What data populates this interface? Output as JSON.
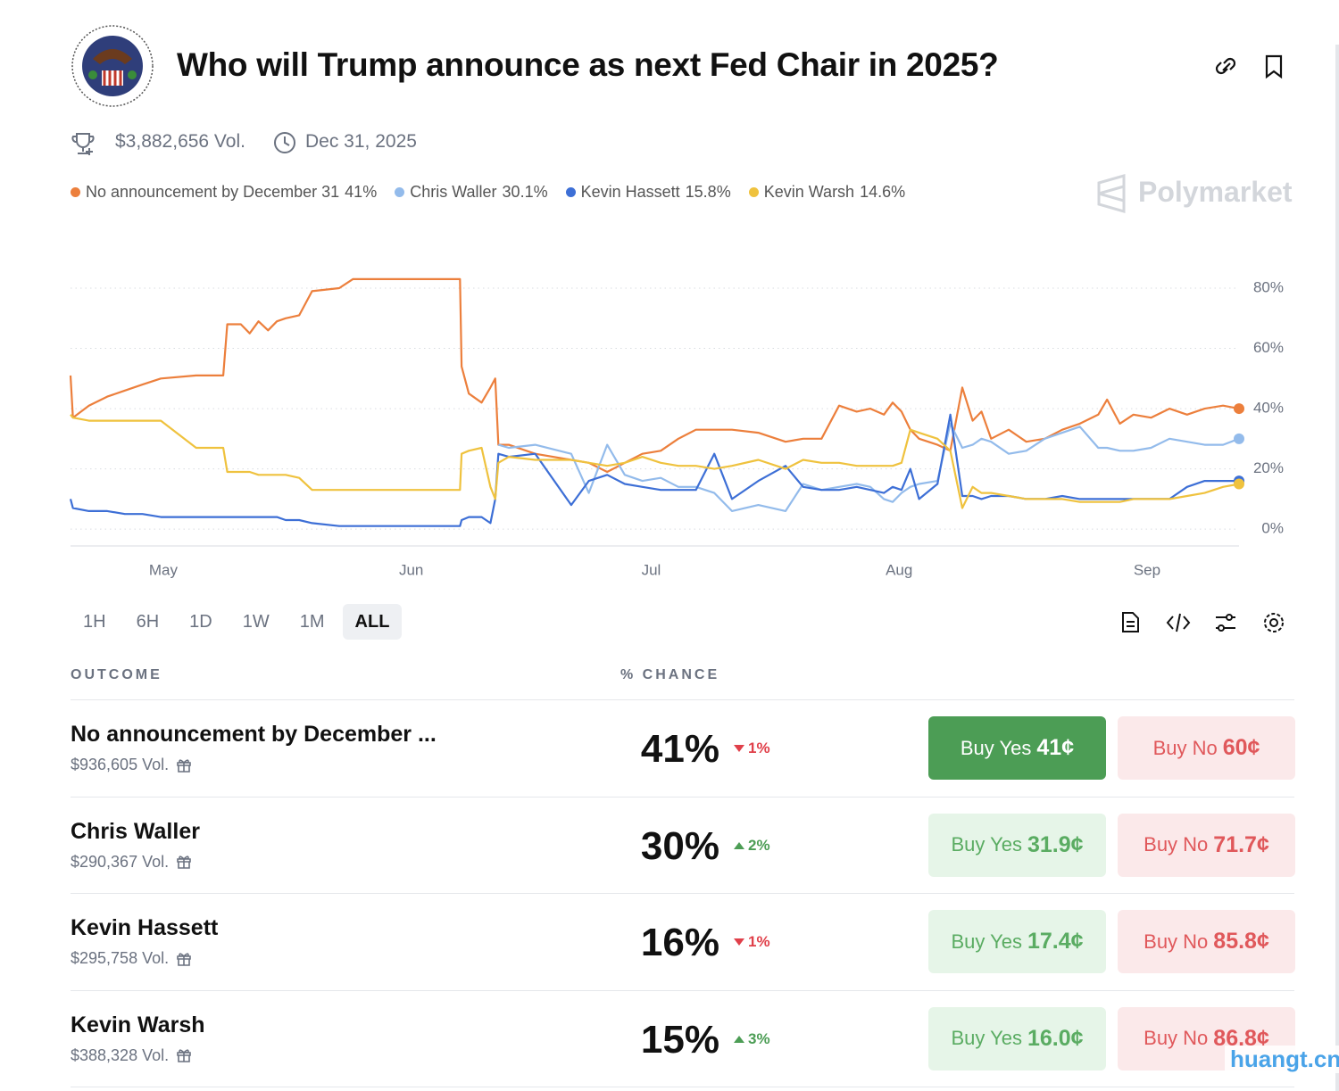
{
  "header": {
    "title": "Who will Trump announce as next Fed Chair in 2025?",
    "volume": "$3,882,656 Vol.",
    "end_date": "Dec 31, 2025"
  },
  "watermark": "Polymarket",
  "chart_data": {
    "type": "line",
    "x": [
      -11.6,
      -11.3,
      -9.3,
      -7.0,
      -4.8,
      -2.6,
      -0.3,
      4.1,
      7.5,
      8.0,
      9.7,
      10.8,
      11.9,
      13.1,
      14.2,
      15.3,
      17.0,
      18.6,
      22.0,
      23.7,
      37.1,
      37.3,
      38.2,
      39.8,
      40.9,
      41.5,
      41.9,
      43.2,
      46.5,
      51.0,
      53.2,
      55.5,
      57.7,
      59.9,
      62.2,
      64.4,
      66.6,
      68.9,
      71.1,
      74.4,
      77.8,
      80.0,
      82.3,
      84.5,
      86.7,
      88.4,
      90.1,
      91.2,
      92.3,
      93.4,
      94.5,
      96.8,
      98.4,
      99.9,
      101.2,
      102.3,
      103.5,
      105.7,
      107.9,
      110.2,
      112.4,
      114.6,
      116.9,
      118.0,
      119.6,
      121.3,
      123.5,
      125.8,
      128.0,
      130.2,
      132.5,
      134.5
    ],
    "xlim": [
      -11.6,
      134.5
    ],
    "xticks": [
      {
        "value": 0,
        "label": "May"
      },
      {
        "value": 31,
        "label": "Jun"
      },
      {
        "value": 61,
        "label": "Jul"
      },
      {
        "value": 92,
        "label": "Aug"
      },
      {
        "value": 123,
        "label": "Sep"
      }
    ],
    "ylim": [
      -5,
      88
    ],
    "yticks": [
      {
        "value": 0,
        "label": "0%"
      },
      {
        "value": 20,
        "label": "20%"
      },
      {
        "value": 40,
        "label": "40%"
      },
      {
        "value": 60,
        "label": "60%"
      },
      {
        "value": 80,
        "label": "80%"
      }
    ],
    "grid": true,
    "series": [
      {
        "name": "No announcement by December 31",
        "color": "#ec7f3c",
        "current": 41,
        "current_label": "41%",
        "values": [
          51,
          37,
          41,
          44,
          46,
          48,
          50,
          51,
          51,
          68,
          68,
          65,
          69,
          66,
          69,
          70,
          71,
          79,
          80,
          83,
          83,
          54,
          45,
          42,
          47,
          50,
          28,
          28,
          25,
          23,
          22,
          19,
          22,
          25,
          26,
          30,
          33,
          33,
          33,
          32,
          29,
          30,
          30,
          41,
          39,
          40,
          38,
          42,
          39,
          33,
          30,
          28,
          26,
          47,
          36,
          39,
          30,
          33,
          29,
          30,
          33,
          35,
          38,
          43,
          35,
          38,
          37,
          40,
          38,
          40,
          41,
          40
        ]
      },
      {
        "name": "Chris Waller",
        "color": "#93bbeb",
        "current": 30.1,
        "current_label": "30.1%",
        "values": [
          null,
          null,
          null,
          null,
          null,
          null,
          null,
          null,
          null,
          null,
          null,
          null,
          null,
          null,
          null,
          null,
          null,
          null,
          null,
          null,
          null,
          null,
          null,
          null,
          null,
          null,
          28,
          27,
          28,
          25,
          12,
          28,
          18,
          16,
          17,
          14,
          14,
          12,
          6,
          8,
          6,
          15,
          13,
          14,
          15,
          14,
          10,
          9,
          12,
          14,
          15,
          16,
          35,
          27,
          28,
          30,
          29,
          25,
          26,
          30,
          32,
          34,
          27,
          27,
          26,
          26,
          27,
          30,
          29,
          28,
          28,
          30
        ]
      },
      {
        "name": "Kevin Hassett",
        "color": "#3d6fd6",
        "current": 15.8,
        "current_label": "15.8%",
        "values": [
          10,
          7,
          6,
          6,
          5,
          5,
          4,
          4,
          4,
          4,
          4,
          4,
          4,
          4,
          4,
          3,
          3,
          2,
          1,
          1,
          1,
          3,
          4,
          4,
          2,
          10,
          25,
          24,
          25,
          8,
          16,
          18,
          15,
          14,
          13,
          13,
          13,
          25,
          10,
          16,
          21,
          14,
          13,
          13,
          14,
          13,
          12,
          14,
          13,
          20,
          10,
          15,
          38,
          11,
          11,
          10,
          11,
          11,
          10,
          10,
          11,
          10,
          10,
          10,
          10,
          10,
          10,
          10,
          14,
          16,
          16,
          16
        ]
      },
      {
        "name": "Kevin Warsh",
        "color": "#efc23e",
        "current": 14.6,
        "current_label": "14.6%",
        "values": [
          38,
          37,
          36,
          36,
          36,
          36,
          36,
          27,
          27,
          19,
          19,
          19,
          18,
          18,
          18,
          18,
          17,
          13,
          13,
          13,
          13,
          25,
          26,
          27,
          14,
          10,
          22,
          24,
          23,
          23,
          22,
          21,
          22,
          24,
          22,
          21,
          21,
          20,
          21,
          23,
          20,
          23,
          22,
          22,
          21,
          21,
          21,
          21,
          22,
          33,
          32,
          30,
          26,
          7,
          14,
          12,
          12,
          11,
          10,
          10,
          10,
          9,
          9,
          9,
          9,
          10,
          10,
          10,
          11,
          12,
          14,
          15
        ]
      }
    ]
  },
  "ranges": {
    "options": [
      "1H",
      "6H",
      "1D",
      "1W",
      "1M",
      "ALL"
    ],
    "active": "ALL"
  },
  "table": {
    "columns": [
      "OUTCOME",
      "% CHANCE"
    ],
    "rows": [
      {
        "name": "No announcement by December ...",
        "volume": "$936,605 Vol.",
        "chance": "41%",
        "change": "1%",
        "direction": "down",
        "buy_yes": "Buy Yes",
        "yes_price": "41¢",
        "buy_no": "Buy No",
        "no_price": "60¢",
        "highlight": true
      },
      {
        "name": "Chris Waller",
        "volume": "$290,367 Vol.",
        "chance": "30%",
        "change": "2%",
        "direction": "up",
        "buy_yes": "Buy Yes",
        "yes_price": "31.9¢",
        "buy_no": "Buy No",
        "no_price": "71.7¢",
        "highlight": false
      },
      {
        "name": "Kevin Hassett",
        "volume": "$295,758 Vol.",
        "chance": "16%",
        "change": "1%",
        "direction": "down",
        "buy_yes": "Buy Yes",
        "yes_price": "17.4¢",
        "buy_no": "Buy No",
        "no_price": "85.8¢",
        "highlight": false
      },
      {
        "name": "Kevin Warsh",
        "volume": "$388,328 Vol.",
        "chance": "15%",
        "change": "3%",
        "direction": "up",
        "buy_yes": "Buy Yes",
        "yes_price": "16.0¢",
        "buy_no": "Buy No",
        "no_price": "86.8¢",
        "highlight": false
      }
    ]
  },
  "site": "huangt.cn"
}
